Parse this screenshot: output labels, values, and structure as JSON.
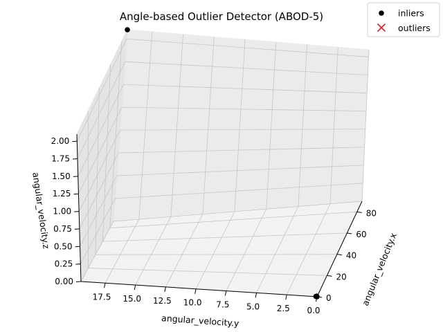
{
  "chart_data": {
    "type": "scatter",
    "projection": "3d",
    "title": "Angle-based Outlier Detector (ABOD-5)",
    "xlabel": "angular_velocity.x",
    "ylabel": "angular_velocity.y",
    "zlabel": "angular_velocity.z",
    "xlim": [
      0,
      90
    ],
    "ylim": [
      0,
      19.5
    ],
    "zlim": [
      0,
      2.1
    ],
    "x_ticks": [
      "0",
      "20",
      "40",
      "60",
      "80"
    ],
    "y_ticks": [
      "17.5",
      "15.0",
      "12.5",
      "10.0",
      "7.5",
      "5.0",
      "2.5",
      "0.0"
    ],
    "z_ticks": [
      "0.00",
      "0.25",
      "0.50",
      "0.75",
      "1.00",
      "1.25",
      "1.50",
      "1.75",
      "2.00"
    ],
    "grid": true,
    "legend_position": "top-right",
    "series": [
      {
        "name": "inliers",
        "marker": "circle",
        "color": "#000000",
        "points": [
          {
            "x": 0,
            "y": 0,
            "z": 0
          },
          {
            "x": 0.5,
            "y": 0.05,
            "z": 0
          },
          {
            "x": 0.2,
            "y": 0.1,
            "z": 0
          },
          {
            "x": 90,
            "y": 19.5,
            "z": 2.1
          }
        ]
      },
      {
        "name": "outliers",
        "marker": "x",
        "color": "#d62728",
        "points": []
      }
    ]
  }
}
